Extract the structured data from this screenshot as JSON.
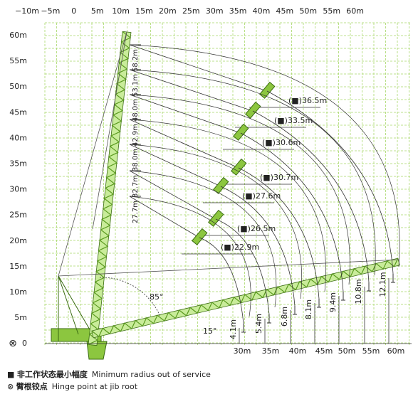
{
  "top_axis": [
    "−10m",
    "−5m",
    "0",
    "5m",
    "10m",
    "15m",
    "20m",
    "25m",
    "30m",
    "35m",
    "40m",
    "45m",
    "50m",
    "55m",
    "60m"
  ],
  "left_axis": [
    "60m",
    "55m",
    "50m",
    "45m",
    "40m",
    "35m",
    "30m",
    "25m",
    "20m",
    "15m",
    "10m",
    "5m",
    "0"
  ],
  "bottom_axis": [
    "30m",
    "35m",
    "40m",
    "45m",
    "50m",
    "55m",
    "60m"
  ],
  "mast_lengths": [
    "58.2m",
    "53.1m",
    "48.0m",
    "42.9m",
    "38.0m",
    "32.7m",
    "27.7m"
  ],
  "radius_labels": [
    "(■)36.5m",
    "(■)33.5m",
    "(■)30.6m",
    "(■)30.7m",
    "(■)27.6m",
    "(■)26.5m",
    "(■)22.9m"
  ],
  "heights": [
    "4.1m",
    "5.4m",
    "6.8m",
    "8.1m",
    "9.4m",
    "10.8m",
    "12.1m"
  ],
  "angles": [
    "85°",
    "15°"
  ],
  "legend": [
    {
      "symbol": "■",
      "zh": "非工作状态最小幅度",
      "en": "Minimum radius out of service"
    },
    {
      "symbol": "⊗",
      "zh": "臂根铰点",
      "en": "Hinge point at jib root"
    }
  ]
}
